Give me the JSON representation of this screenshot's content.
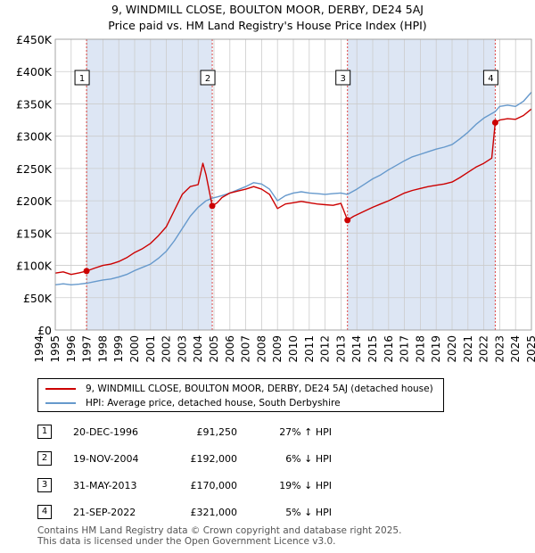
{
  "title_line1": "9, WINDMILL CLOSE, BOULTON MOOR, DERBY, DE24 5AJ",
  "title_line2": "Price paid vs. HM Land Registry's House Price Index (HPI)",
  "colors": {
    "property": "#cc0000",
    "hpi": "#6699cc",
    "shade": "#dde6f4",
    "marker_line": "#dd4444"
  },
  "chart_data": {
    "type": "line",
    "title": "Price paid vs. HM Land Registry's House Price Index (HPI)",
    "xlim": [
      1995,
      2025
    ],
    "ylim": [
      0,
      450000
    ],
    "y_ticks": [
      {
        "value": 0,
        "label": "£0"
      },
      {
        "value": 50000,
        "label": "£50K"
      },
      {
        "value": 100000,
        "label": "£100K"
      },
      {
        "value": 150000,
        "label": "£150K"
      },
      {
        "value": 200000,
        "label": "£200K"
      },
      {
        "value": 250000,
        "label": "£250K"
      },
      {
        "value": 300000,
        "label": "£300K"
      },
      {
        "value": 350000,
        "label": "£350K"
      },
      {
        "value": 400000,
        "label": "£400K"
      },
      {
        "value": 450000,
        "label": "£450K"
      }
    ],
    "x_ticks": [
      "1994",
      "1995",
      "1996",
      "1997",
      "1998",
      "1999",
      "2000",
      "2001",
      "2002",
      "2003",
      "2004",
      "2005",
      "2006",
      "2007",
      "2008",
      "2009",
      "2010",
      "2011",
      "2012",
      "2013",
      "2014",
      "2015",
      "2016",
      "2017",
      "2018",
      "2019",
      "2020",
      "2021",
      "2022",
      "2023",
      "2024",
      "2025"
    ],
    "series": [
      {
        "name": "9, WINDMILL CLOSE, BOULTON MOOR, DERBY, DE24 5AJ (detached house)",
        "color": "#cc0000",
        "points": [
          [
            1995.0,
            88000
          ],
          [
            1995.5,
            90000
          ],
          [
            1996.0,
            86000
          ],
          [
            1996.5,
            88500
          ],
          [
            1996.97,
            91250
          ],
          [
            1997.5,
            96000
          ],
          [
            1998.0,
            100000
          ],
          [
            1998.5,
            102000
          ],
          [
            1999.0,
            106000
          ],
          [
            1999.5,
            112000
          ],
          [
            2000.0,
            120000
          ],
          [
            2000.5,
            126000
          ],
          [
            2001.0,
            134000
          ],
          [
            2001.5,
            146000
          ],
          [
            2002.0,
            160000
          ],
          [
            2002.5,
            185000
          ],
          [
            2003.0,
            210000
          ],
          [
            2003.5,
            222000
          ],
          [
            2004.0,
            225000
          ],
          [
            2004.3,
            258000
          ],
          [
            2004.5,
            240000
          ],
          [
            2004.89,
            192000
          ],
          [
            2005.2,
            197000
          ],
          [
            2005.5,
            205000
          ],
          [
            2006.0,
            212000
          ],
          [
            2006.5,
            215000
          ],
          [
            2007.0,
            218000
          ],
          [
            2007.5,
            222000
          ],
          [
            2008.0,
            218000
          ],
          [
            2008.5,
            210000
          ],
          [
            2009.0,
            188000
          ],
          [
            2009.5,
            195000
          ],
          [
            2010.0,
            197000
          ],
          [
            2010.5,
            199000
          ],
          [
            2011.0,
            197000
          ],
          [
            2011.5,
            195000
          ],
          [
            2012.0,
            194000
          ],
          [
            2012.5,
            193000
          ],
          [
            2013.0,
            196000
          ],
          [
            2013.41,
            170000
          ],
          [
            2013.8,
            176000
          ],
          [
            2014.3,
            182000
          ],
          [
            2015.0,
            190000
          ],
          [
            2015.5,
            195000
          ],
          [
            2016.0,
            200000
          ],
          [
            2016.5,
            206000
          ],
          [
            2017.0,
            212000
          ],
          [
            2017.5,
            216000
          ],
          [
            2018.0,
            219000
          ],
          [
            2018.5,
            222000
          ],
          [
            2019.0,
            224000
          ],
          [
            2019.5,
            226000
          ],
          [
            2020.0,
            229000
          ],
          [
            2020.5,
            236000
          ],
          [
            2021.0,
            244000
          ],
          [
            2021.5,
            252000
          ],
          [
            2022.0,
            258000
          ],
          [
            2022.5,
            266000
          ],
          [
            2022.72,
            321000
          ],
          [
            2023.0,
            325000
          ],
          [
            2023.5,
            327000
          ],
          [
            2024.0,
            326000
          ],
          [
            2024.5,
            332000
          ],
          [
            2025.0,
            342000
          ]
        ]
      },
      {
        "name": "HPI: Average price, detached house, South Derbyshire",
        "color": "#6699cc",
        "points": [
          [
            1995.0,
            70000
          ],
          [
            1995.5,
            71500
          ],
          [
            1996.0,
            70000
          ],
          [
            1996.5,
            71000
          ],
          [
            1997.0,
            72500
          ],
          [
            1997.5,
            75000
          ],
          [
            1998.0,
            77500
          ],
          [
            1998.5,
            79000
          ],
          [
            1999.0,
            82000
          ],
          [
            1999.5,
            86000
          ],
          [
            2000.0,
            92000
          ],
          [
            2000.5,
            97000
          ],
          [
            2001.0,
            102000
          ],
          [
            2001.5,
            111000
          ],
          [
            2002.0,
            122000
          ],
          [
            2002.5,
            138000
          ],
          [
            2003.0,
            157000
          ],
          [
            2003.5,
            176000
          ],
          [
            2004.0,
            190000
          ],
          [
            2004.5,
            200000
          ],
          [
            2004.89,
            204000
          ],
          [
            2005.2,
            206000
          ],
          [
            2005.5,
            208000
          ],
          [
            2006.0,
            212000
          ],
          [
            2006.5,
            217000
          ],
          [
            2007.0,
            222000
          ],
          [
            2007.5,
            228000
          ],
          [
            2008.0,
            226000
          ],
          [
            2008.5,
            218000
          ],
          [
            2009.0,
            200000
          ],
          [
            2009.5,
            208000
          ],
          [
            2010.0,
            212000
          ],
          [
            2010.5,
            214000
          ],
          [
            2011.0,
            212000
          ],
          [
            2011.5,
            211000
          ],
          [
            2012.0,
            210000
          ],
          [
            2012.5,
            211000
          ],
          [
            2013.0,
            212000
          ],
          [
            2013.41,
            210000
          ],
          [
            2014.0,
            218000
          ],
          [
            2014.5,
            226000
          ],
          [
            2015.0,
            234000
          ],
          [
            2015.5,
            240000
          ],
          [
            2016.0,
            248000
          ],
          [
            2016.5,
            255000
          ],
          [
            2017.0,
            262000
          ],
          [
            2017.5,
            268000
          ],
          [
            2018.0,
            272000
          ],
          [
            2018.5,
            276000
          ],
          [
            2019.0,
            280000
          ],
          [
            2019.5,
            283000
          ],
          [
            2020.0,
            287000
          ],
          [
            2020.5,
            296000
          ],
          [
            2021.0,
            306000
          ],
          [
            2021.5,
            318000
          ],
          [
            2022.0,
            328000
          ],
          [
            2022.72,
            338000
          ],
          [
            2023.0,
            346000
          ],
          [
            2023.5,
            348000
          ],
          [
            2024.0,
            346000
          ],
          [
            2024.5,
            354000
          ],
          [
            2025.0,
            368000
          ]
        ]
      }
    ],
    "transactions": [
      {
        "num": "1",
        "x": 1996.97,
        "price_value": 91250
      },
      {
        "num": "2",
        "x": 2004.89,
        "price_value": 192000
      },
      {
        "num": "3",
        "x": 2013.41,
        "price_value": 170000
      },
      {
        "num": "4",
        "x": 2022.72,
        "price_value": 321000
      }
    ]
  },
  "legend": {
    "property_label": "9, WINDMILL CLOSE, BOULTON MOOR, DERBY, DE24 5AJ (detached house)",
    "hpi_label": "HPI: Average price, detached house, South Derbyshire"
  },
  "transactions_table": [
    {
      "num": "1",
      "date": "20-DEC-1996",
      "price": "£91,250",
      "hpi": "27% ↑ HPI"
    },
    {
      "num": "2",
      "date": "19-NOV-2004",
      "price": "£192,000",
      "hpi": "6% ↓ HPI"
    },
    {
      "num": "3",
      "date": "31-MAY-2013",
      "price": "£170,000",
      "hpi": "19% ↓ HPI"
    },
    {
      "num": "4",
      "date": "21-SEP-2022",
      "price": "£321,000",
      "hpi": "5% ↓ HPI"
    }
  ],
  "footer_line1": "Contains HM Land Registry data © Crown copyright and database right 2025.",
  "footer_line2": "This data is licensed under the Open Government Licence v3.0."
}
